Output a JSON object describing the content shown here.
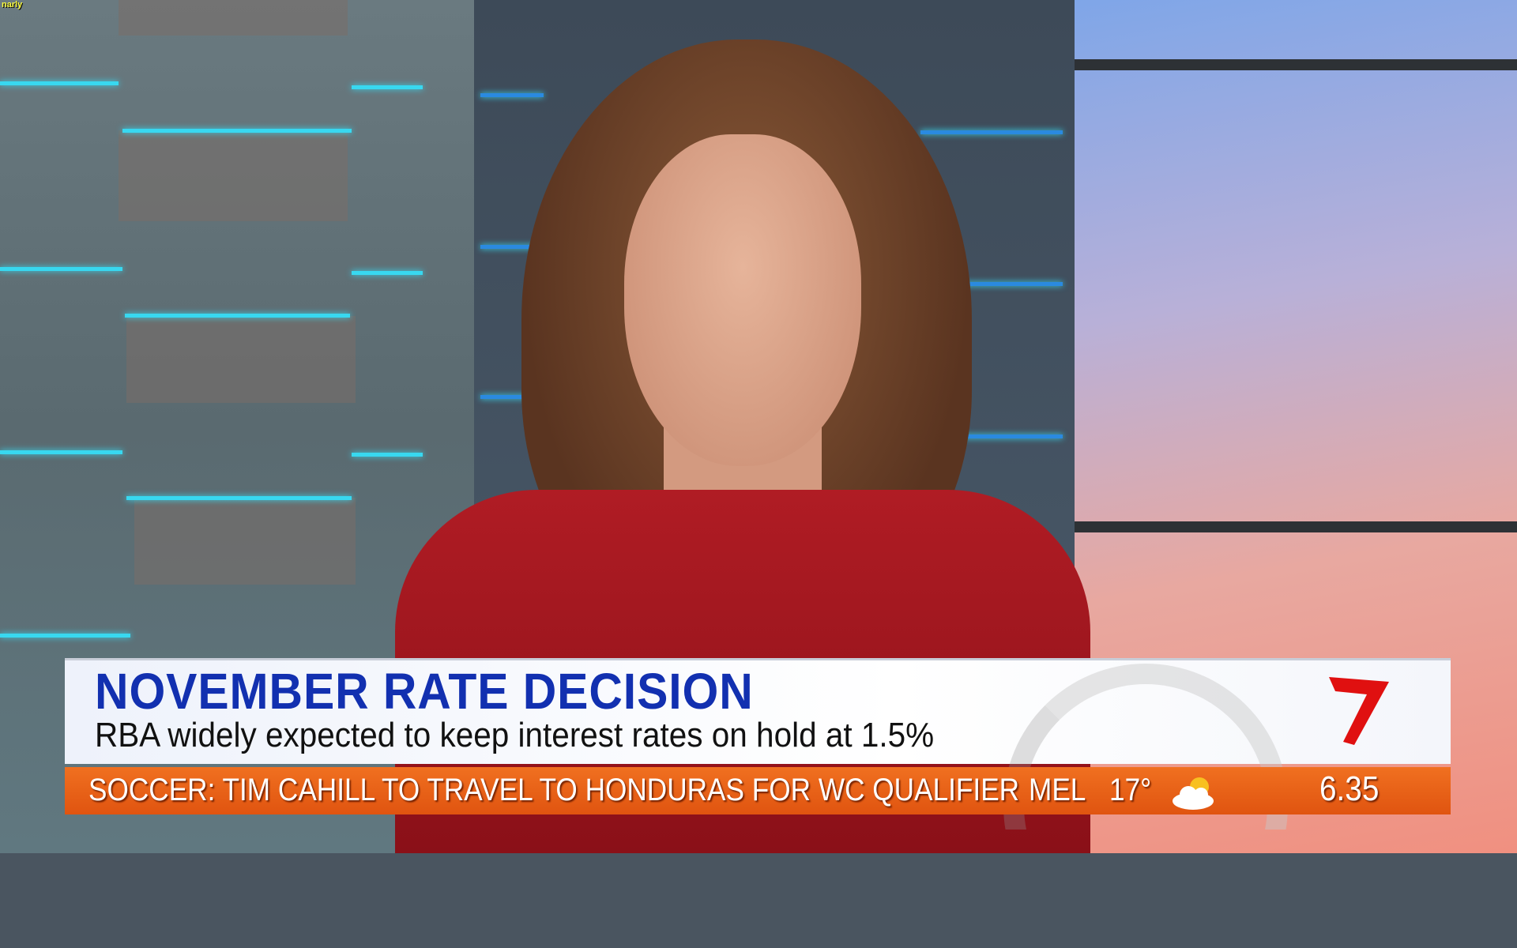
{
  "corner_tag": "narly",
  "lower_third": {
    "headline": "NOVEMBER RATE DECISION",
    "subheadline": "RBA widely expected to keep interest rates on hold at 1.5%"
  },
  "logo": {
    "icon": "channel-7-logo",
    "color": "#e01010"
  },
  "ticker": {
    "news": "SOCCER: TIM CAHILL TO TRAVEL TO HONDURAS FOR WC QUALIFIER",
    "city": "MEL",
    "temperature": "17°",
    "weather_icon": "partly-cloudy-icon",
    "time": "6.35"
  },
  "colors": {
    "headline": "#1230b0",
    "ticker": "#e86018"
  }
}
